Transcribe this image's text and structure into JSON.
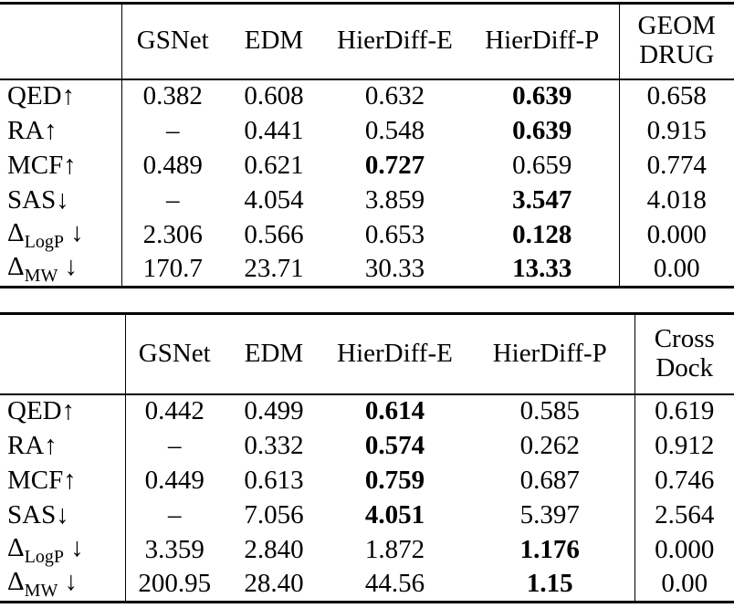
{
  "page": {
    "background": "#ffffff",
    "text_color": "#000000",
    "rule_color": "#000000"
  },
  "tables": [
    {
      "name": "geom-drug-metrics-table",
      "columns": [
        {
          "label": ""
        },
        {
          "label": "GSNet"
        },
        {
          "label": "EDM"
        },
        {
          "label": "HierDiff-E"
        },
        {
          "label": "HierDiff-P"
        },
        {
          "label_lines": [
            "GEOM",
            "DRUG"
          ]
        }
      ],
      "rows": [
        {
          "metric": {
            "base": "QED",
            "sub": "",
            "arrow": "↑"
          },
          "values": [
            {
              "text": "0.382"
            },
            {
              "text": "0.608"
            },
            {
              "text": "0.632"
            },
            {
              "text": "0.639",
              "bold": true
            },
            {
              "text": "0.658"
            }
          ]
        },
        {
          "metric": {
            "base": "RA",
            "sub": "",
            "arrow": "↑"
          },
          "values": [
            {
              "text": "–"
            },
            {
              "text": "0.441"
            },
            {
              "text": "0.548"
            },
            {
              "text": "0.639",
              "bold": true
            },
            {
              "text": "0.915"
            }
          ]
        },
        {
          "metric": {
            "base": "MCF",
            "sub": "",
            "arrow": "↑"
          },
          "values": [
            {
              "text": "0.489"
            },
            {
              "text": "0.621"
            },
            {
              "text": "0.727",
              "bold": true
            },
            {
              "text": "0.659"
            },
            {
              "text": "0.774"
            }
          ]
        },
        {
          "metric": {
            "base": "SAS",
            "sub": "",
            "arrow": "↓"
          },
          "values": [
            {
              "text": "–"
            },
            {
              "text": "4.054"
            },
            {
              "text": "3.859"
            },
            {
              "text": "3.547",
              "bold": true
            },
            {
              "text": "4.018"
            }
          ]
        },
        {
          "metric": {
            "base": "Δ",
            "sub": "LogP",
            "arrow": " ↓"
          },
          "values": [
            {
              "text": "2.306"
            },
            {
              "text": "0.566"
            },
            {
              "text": "0.653"
            },
            {
              "text": "0.128",
              "bold": true
            },
            {
              "text": "0.000"
            }
          ]
        },
        {
          "metric": {
            "base": "Δ",
            "sub": "MW",
            "arrow": " ↓"
          },
          "values": [
            {
              "text": "170.7"
            },
            {
              "text": "23.71"
            },
            {
              "text": "30.33"
            },
            {
              "text": "13.33",
              "bold": true
            },
            {
              "text": "0.00"
            }
          ]
        }
      ]
    },
    {
      "name": "cross-dock-metrics-table",
      "columns": [
        {
          "label": ""
        },
        {
          "label": "GSNet"
        },
        {
          "label": "EDM"
        },
        {
          "label": "HierDiff-E"
        },
        {
          "label": "HierDiff-P"
        },
        {
          "label_lines": [
            "Cross",
            "Dock"
          ]
        }
      ],
      "rows": [
        {
          "metric": {
            "base": "QED",
            "sub": "",
            "arrow": "↑"
          },
          "values": [
            {
              "text": "0.442"
            },
            {
              "text": "0.499"
            },
            {
              "text": "0.614",
              "bold": true
            },
            {
              "text": "0.585"
            },
            {
              "text": "0.619"
            }
          ]
        },
        {
          "metric": {
            "base": "RA",
            "sub": "",
            "arrow": "↑"
          },
          "values": [
            {
              "text": "–"
            },
            {
              "text": "0.332"
            },
            {
              "text": "0.574",
              "bold": true
            },
            {
              "text": "0.262"
            },
            {
              "text": "0.912"
            }
          ]
        },
        {
          "metric": {
            "base": "MCF",
            "sub": "",
            "arrow": "↑"
          },
          "values": [
            {
              "text": "0.449"
            },
            {
              "text": "0.613"
            },
            {
              "text": "0.759",
              "bold": true
            },
            {
              "text": "0.687"
            },
            {
              "text": "0.746"
            }
          ]
        },
        {
          "metric": {
            "base": "SAS",
            "sub": "",
            "arrow": "↓"
          },
          "values": [
            {
              "text": "–"
            },
            {
              "text": "7.056"
            },
            {
              "text": "4.051",
              "bold": true
            },
            {
              "text": "5.397"
            },
            {
              "text": "2.564"
            }
          ]
        },
        {
          "metric": {
            "base": "Δ",
            "sub": "LogP",
            "arrow": " ↓"
          },
          "values": [
            {
              "text": "3.359"
            },
            {
              "text": "2.840"
            },
            {
              "text": "1.872"
            },
            {
              "text": "1.176",
              "bold": true
            },
            {
              "text": "0.000"
            }
          ]
        },
        {
          "metric": {
            "base": "Δ",
            "sub": "MW",
            "arrow": " ↓"
          },
          "values": [
            {
              "text": "200.95"
            },
            {
              "text": "28.40"
            },
            {
              "text": "44.56"
            },
            {
              "text": "1.15",
              "bold": true
            },
            {
              "text": "0.00"
            }
          ]
        }
      ]
    }
  ]
}
